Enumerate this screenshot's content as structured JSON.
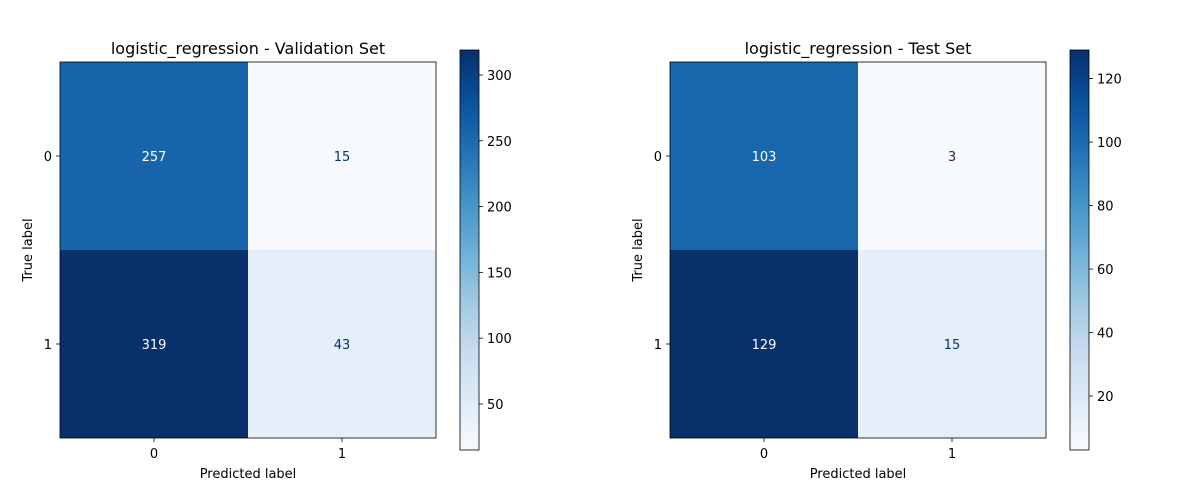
{
  "chart_data": [
    {
      "type": "heatmap",
      "title": "logistic_regression - Validation Set",
      "xlabel": "Predicted label",
      "ylabel": "True label",
      "x_categories": [
        "0",
        "1"
      ],
      "y_categories": [
        "0",
        "1"
      ],
      "matrix": [
        [
          257,
          15
        ],
        [
          319,
          43
        ]
      ],
      "colormap": "Blues",
      "colorbar": {
        "range": [
          15,
          319
        ],
        "ticks": [
          50,
          100,
          150,
          200,
          250,
          300
        ]
      }
    },
    {
      "type": "heatmap",
      "title": "logistic_regression - Test Set",
      "xlabel": "Predicted label",
      "ylabel": "True label",
      "x_categories": [
        "0",
        "1"
      ],
      "y_categories": [
        "0",
        "1"
      ],
      "matrix": [
        [
          103,
          3
        ],
        [
          129,
          15
        ]
      ],
      "colormap": "Blues",
      "colorbar": {
        "range": [
          3,
          129
        ],
        "ticks": [
          20,
          40,
          60,
          80,
          100,
          120
        ]
      }
    }
  ],
  "colors": {
    "blues_low": "#f7fbff",
    "blues_high": "#08306b",
    "text_dark": "#08306b",
    "text_light": "#ffffff"
  }
}
